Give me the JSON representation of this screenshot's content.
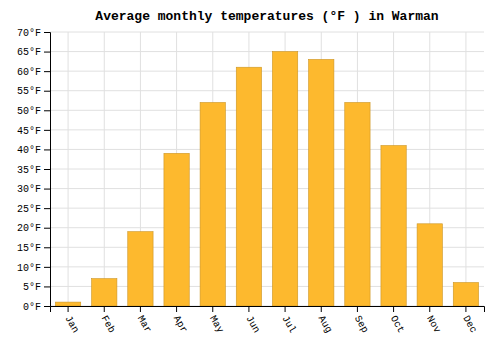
{
  "chart_data": {
    "type": "bar",
    "title": "Average monthly temperatures (°F ) in Warman",
    "categories": [
      "Jan",
      "Feb",
      "Mar",
      "Apr",
      "May",
      "Jun",
      "Jul",
      "Aug",
      "Sep",
      "Oct",
      "Nov",
      "Dec"
    ],
    "values": [
      1,
      7,
      19,
      39,
      52,
      61,
      65,
      63,
      52,
      41,
      21,
      6
    ],
    "color": "#FDB92E",
    "ylim": [
      0,
      70
    ],
    "yticks": [
      {
        "value": 0,
        "label": "0°F"
      },
      {
        "value": 5,
        "label": "5°F"
      },
      {
        "value": 10,
        "label": "10°F"
      },
      {
        "value": 15,
        "label": "15°F"
      },
      {
        "value": 20,
        "label": "20°F"
      },
      {
        "value": 25,
        "label": "25°F"
      },
      {
        "value": 30,
        "label": "30°F"
      },
      {
        "value": 35,
        "label": "35°F"
      },
      {
        "value": 40,
        "label": "40°F"
      },
      {
        "value": 45,
        "label": "45°F"
      },
      {
        "value": 50,
        "label": "50°F"
      },
      {
        "value": 55,
        "label": "55°F"
      },
      {
        "value": 60,
        "label": "60°F"
      },
      {
        "value": 65,
        "label": "65°F"
      },
      {
        "value": 70,
        "label": "70°F"
      }
    ],
    "grid": true
  }
}
